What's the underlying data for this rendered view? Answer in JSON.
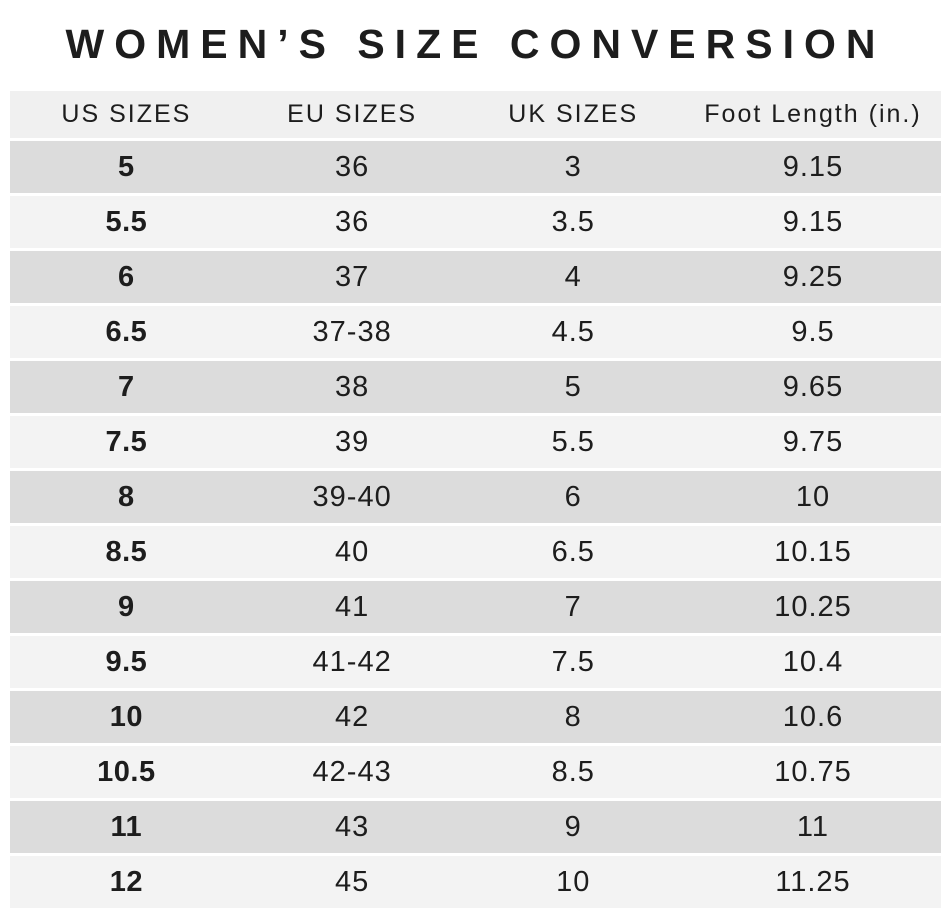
{
  "chart_data": {
    "type": "table",
    "title": "WOMEN’S SIZE CONVERSION",
    "columns": [
      "US SIZES",
      "EU SIZES",
      "UK SIZES",
      "Foot Length (in.)"
    ],
    "rows": [
      [
        "5",
        "36",
        "3",
        "9.15"
      ],
      [
        "5.5",
        "36",
        "3.5",
        "9.15"
      ],
      [
        "6",
        "37",
        "4",
        "9.25"
      ],
      [
        "6.5",
        "37-38",
        "4.5",
        "9.5"
      ],
      [
        "7",
        "38",
        "5",
        "9.65"
      ],
      [
        "7.5",
        "39",
        "5.5",
        "9.75"
      ],
      [
        "8",
        "39-40",
        "6",
        "10"
      ],
      [
        "8.5",
        "40",
        "6.5",
        "10.15"
      ],
      [
        "9",
        "41",
        "7",
        "10.25"
      ],
      [
        "9.5",
        "41-42",
        "7.5",
        "10.4"
      ],
      [
        "10",
        "42",
        "8",
        "10.6"
      ],
      [
        "10.5",
        "42-43",
        "8.5",
        "10.75"
      ],
      [
        "11",
        "43",
        "9",
        "11"
      ],
      [
        "12",
        "45",
        "10",
        "11.25"
      ]
    ],
    "layout": {
      "row_striping": "alternating, first data row dark",
      "legend": "none",
      "grid": "off"
    }
  },
  "colors": {
    "background": "#ffffff",
    "header_bg": "#f0f0f0",
    "row_dark": "#dcdcdc",
    "row_light": "#f3f3f3",
    "text": "#1d1d1d"
  }
}
